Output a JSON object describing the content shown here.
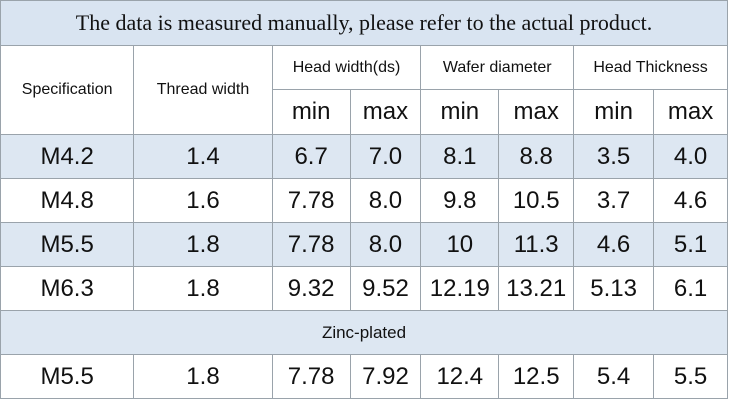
{
  "note": "The data is measured manually, please refer to the actual product.",
  "headers": {
    "specification": "Specification",
    "thread_width": "Thread width",
    "head_width": "Head width(ds)",
    "wafer_diameter": "Wafer diameter",
    "head_thickness": "Head Thickness",
    "min": "min",
    "max": "max"
  },
  "rows": [
    [
      "M4.2",
      "1.4",
      "6.7",
      "7.0",
      "8.1",
      "8.8",
      "3.5",
      "4.0"
    ],
    [
      "M4.8",
      "1.6",
      "7.78",
      "8.0",
      "9.8",
      "10.5",
      "3.7",
      "4.6"
    ],
    [
      "M5.5",
      "1.8",
      "7.78",
      "8.0",
      "10",
      "11.3",
      "4.6",
      "5.1"
    ],
    [
      "M6.3",
      "1.8",
      "9.32",
      "9.52",
      "12.19",
      "13.21",
      "5.13",
      "6.1"
    ]
  ],
  "section_label": "Zinc-plated",
  "zinc_rows": [
    [
      "M5.5",
      "1.8",
      "7.78",
      "7.92",
      "12.4",
      "12.5",
      "5.4",
      "5.5"
    ]
  ],
  "colors": {
    "band": "#dde7f2",
    "border": "#9aa3ab"
  }
}
